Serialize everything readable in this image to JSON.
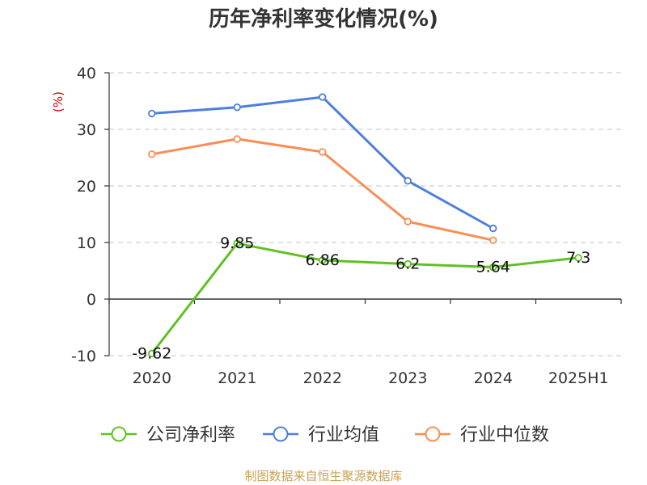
{
  "chart_data": {
    "type": "line",
    "title": "历年净利率变化情况(%)",
    "y_unit_label": "(%)",
    "categories": [
      "2020",
      "2021",
      "2022",
      "2023",
      "2024",
      "2025H1"
    ],
    "ylim": [
      -10,
      40
    ],
    "yticks": [
      -10,
      0,
      10,
      20,
      30,
      40
    ],
    "grid": true,
    "legend_position": "bottom",
    "series": [
      {
        "name": "公司净利率",
        "color": "#5fc124",
        "values": [
          -9.62,
          9.85,
          6.86,
          6.2,
          5.64,
          7.3
        ],
        "labels": [
          "-9.62",
          "9.85",
          "6.86",
          "6.2",
          "5.64",
          "7.3"
        ]
      },
      {
        "name": "行业均值",
        "color": "#4e7fdc",
        "values": [
          32.8,
          33.9,
          35.7,
          20.9,
          12.5,
          null
        ]
      },
      {
        "name": "行业中位数",
        "color": "#f98e55",
        "values": [
          25.6,
          28.3,
          26.0,
          13.7,
          10.4,
          null
        ]
      }
    ],
    "source": "制图数据来自恒生聚源数据库"
  }
}
